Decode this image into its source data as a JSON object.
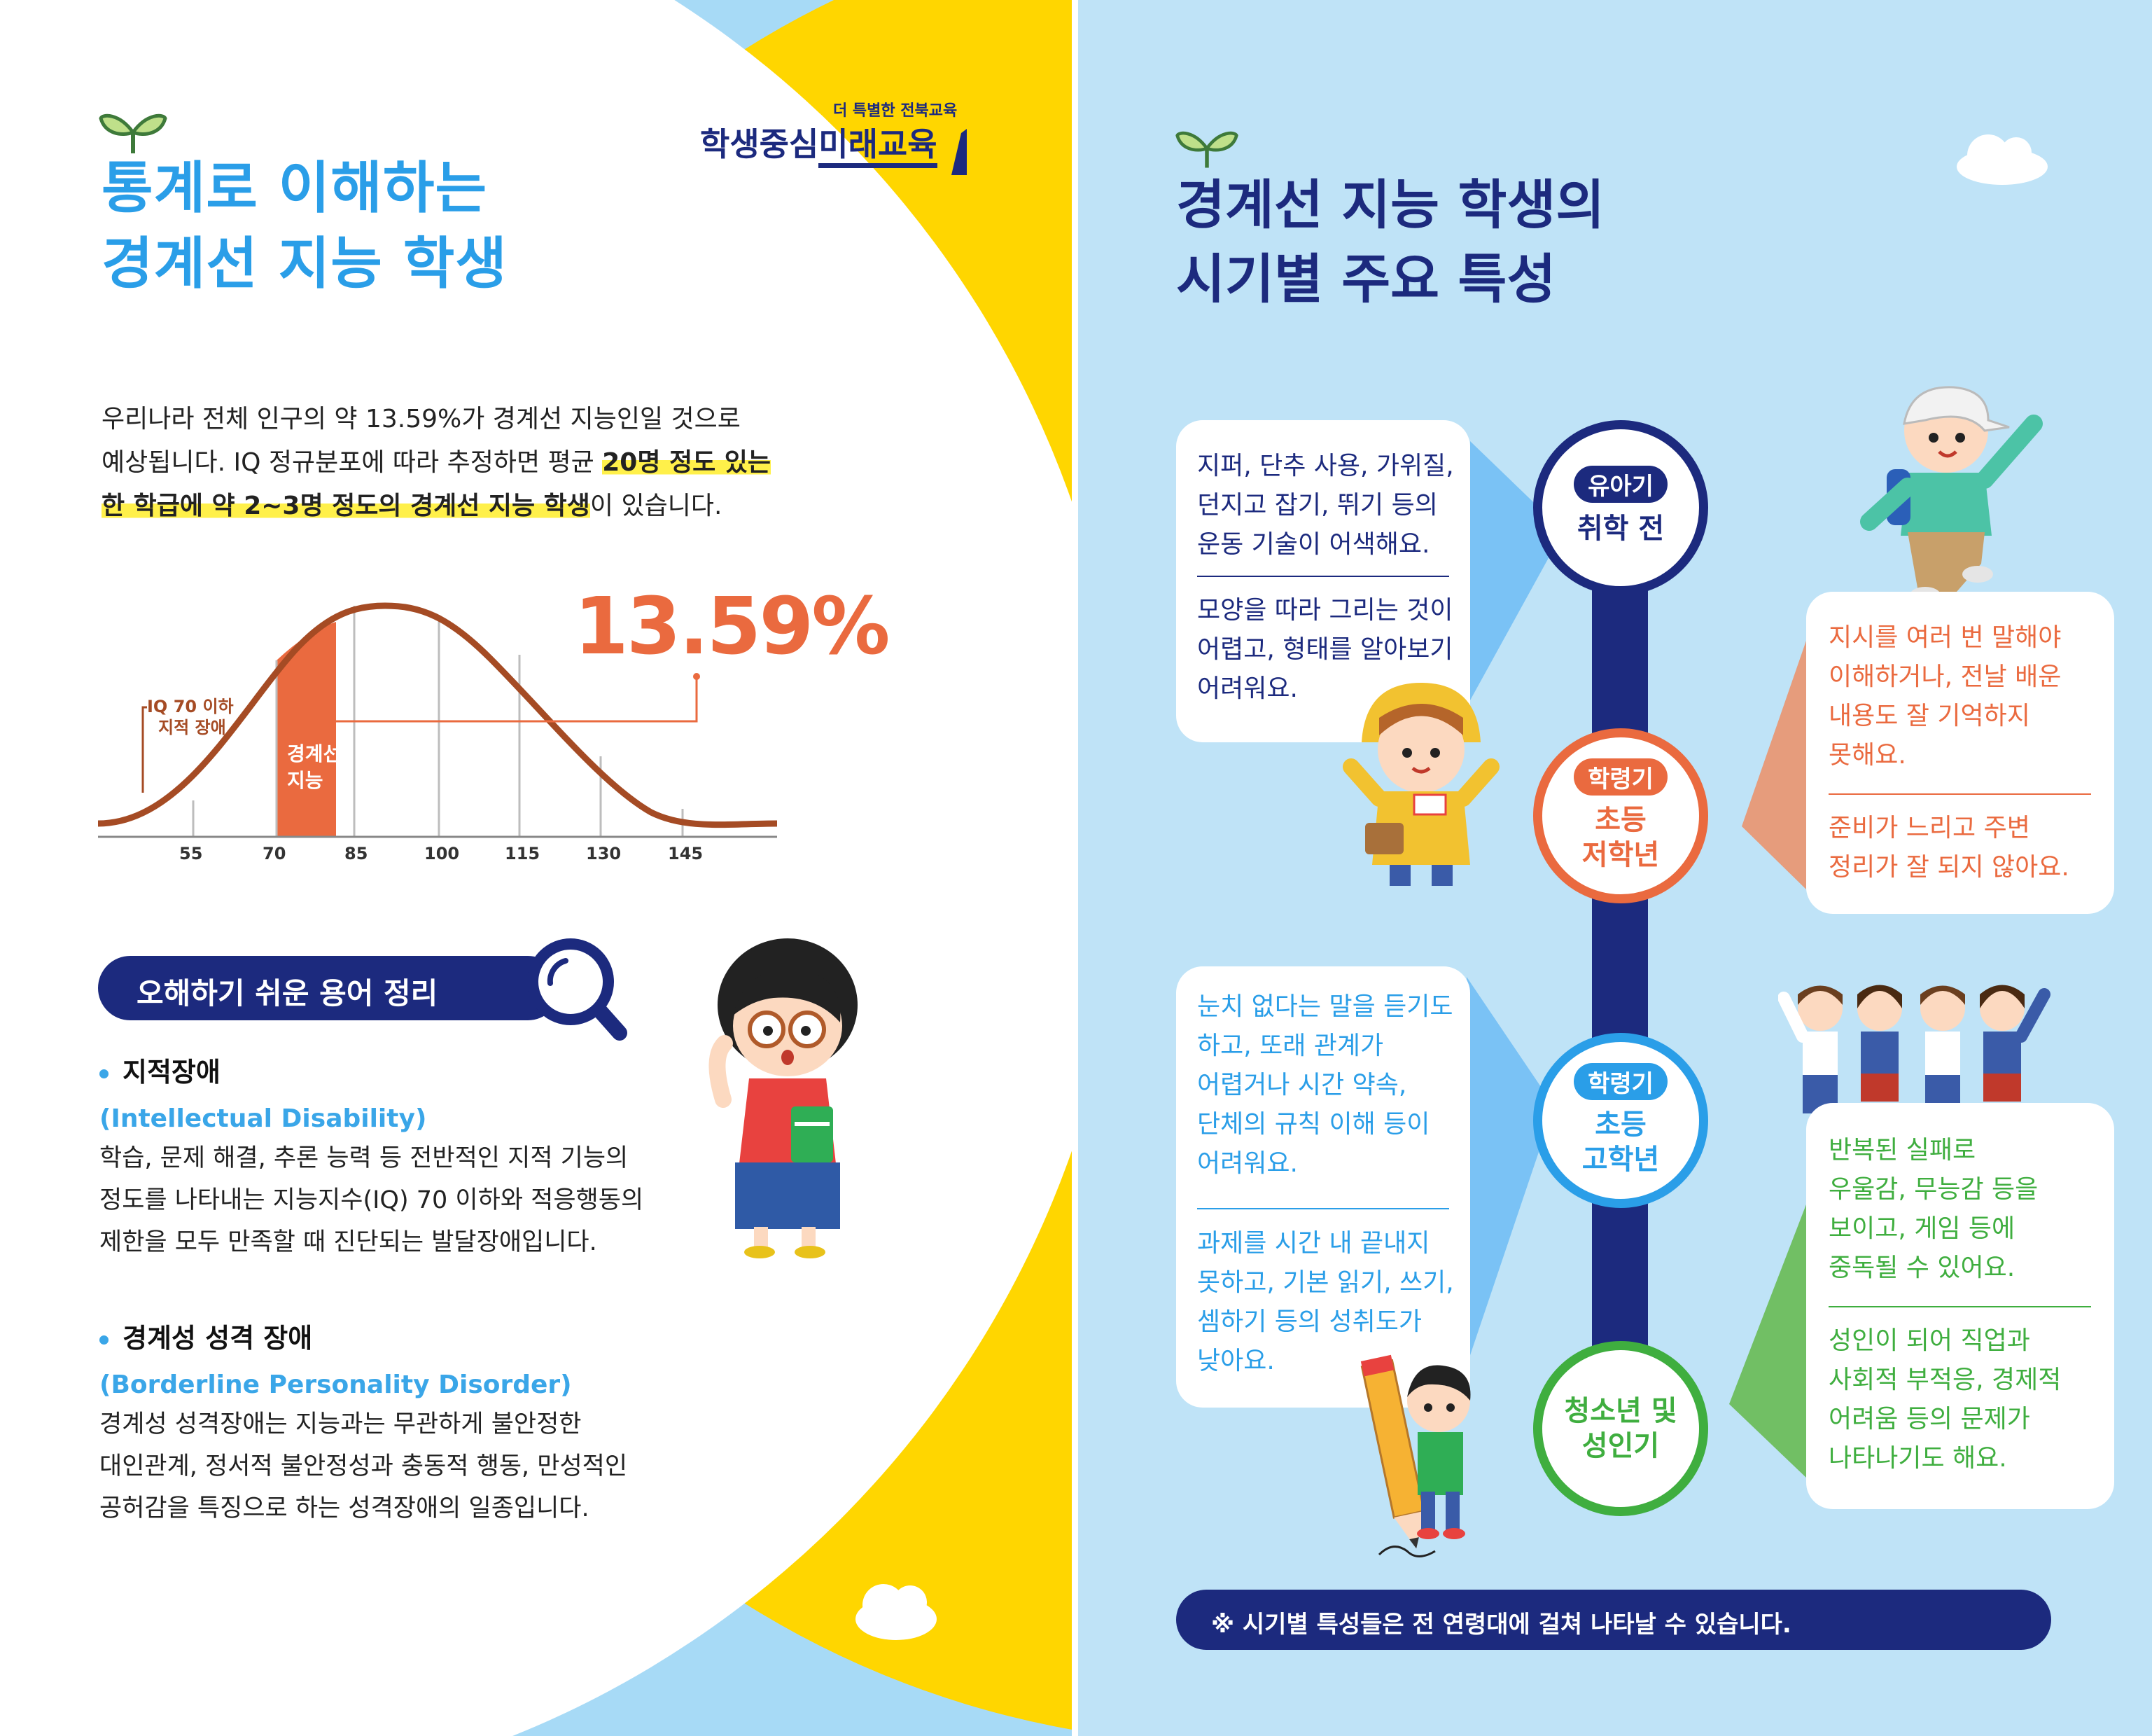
{
  "left": {
    "title": [
      "통계로 이해하는",
      "경계선 지능 학생"
    ],
    "logo": {
      "small": "더 특별한 전북교육",
      "main_a": "학생중심",
      "main_b": "미래교육"
    },
    "intro": {
      "p1": "우리나라 전체 인구의 약 13.59%가 경계선 지능인일 것으로",
      "p2a": "예상됩니다. IQ 정규분포에 따라 추정하면 평균 ",
      "p2hl": "20명 정도 있는",
      "p3hl": "한 학급에 약 2~3명 정도의 경계선 지능 학생",
      "p3b": "이 있습니다."
    },
    "chart": {
      "percent": "13.59%",
      "label_iq70": [
        "IQ 70 이하",
        "지적 장애"
      ],
      "label_borderline": [
        "경계선",
        "지능"
      ],
      "ticks": [
        "55",
        "70",
        "85",
        "100",
        "115",
        "130",
        "145"
      ]
    },
    "glossary": {
      "heading": "오해하기 쉬운 용어 정리",
      "terms": [
        {
          "title": "지적장애",
          "en": "(Intellectual Disability)",
          "desc": [
            "학습, 문제 해결, 추론 능력 등 전반적인 지적 기능의",
            "정도를 나타내는 지능지수(IQ) 70 이하와 적응행동의",
            "제한을 모두 만족할 때 진단되는 발달장애입니다."
          ]
        },
        {
          "title": "경계성 성격 장애",
          "en": "(Borderline Personality Disorder)",
          "desc": [
            "경계성 성격장애는 지능과는 무관하게 불안정한",
            "대인관계, 정서적 불안정성과 충동적 행동, 만성적인",
            "공허감을 특징으로 하는 성격장애의 일종입니다."
          ]
        }
      ]
    }
  },
  "right": {
    "title": [
      "경계선 지능 학생의",
      "시기별 주요 특성"
    ],
    "stages": [
      {
        "tag": "유아기",
        "name": [
          "취학 전"
        ],
        "color": "#1c2a7e",
        "items": [
          [
            "지퍼, 단추 사용, 가위질,",
            "던지고 잡기, 뛰기 등의",
            "운동 기술이 어색해요."
          ],
          [
            "모양을 따라 그리는 것이",
            "어렵고, 형태를 알아보기",
            "어려워요."
          ]
        ]
      },
      {
        "tag": "학령기",
        "name": [
          "초등",
          "저학년"
        ],
        "color": "#ea6a3f",
        "items": [
          [
            "지시를 여러 번 말해야",
            "이해하거나, 전날 배운",
            "내용도 잘 기억하지",
            "못해요."
          ],
          [
            "준비가 느리고 주변",
            "정리가 잘 되지 않아요."
          ]
        ]
      },
      {
        "tag": "학령기",
        "name": [
          "초등",
          "고학년"
        ],
        "color": "#2a9ee8",
        "items": [
          [
            "눈치 없다는 말을 듣기도",
            "하고, 또래 관계가",
            "어렵거나 시간 약속,",
            "단체의 규칙 이해 등이",
            "어려워요."
          ],
          [
            "과제를 시간 내 끝내지",
            "못하고, 기본 읽기, 쓰기,",
            "셈하기 등의 성취도가",
            "낮아요."
          ]
        ]
      },
      {
        "tag": "",
        "name": [
          "청소년 및",
          "성인기"
        ],
        "color": "#3fae3f",
        "items": [
          [
            "반복된 실패로",
            "우울감, 무능감 등을",
            "보이고, 게임 등에",
            "중독될 수 있어요."
          ],
          [
            "성인이 되어 직업과",
            "사회적 부적응, 경제적",
            "어려움 등의 문제가",
            "나타나기도 해요."
          ]
        ]
      }
    ],
    "note": "※ 시기별 특성들은 전 연령대에 걸쳐 나타날 수 있습니다."
  }
}
